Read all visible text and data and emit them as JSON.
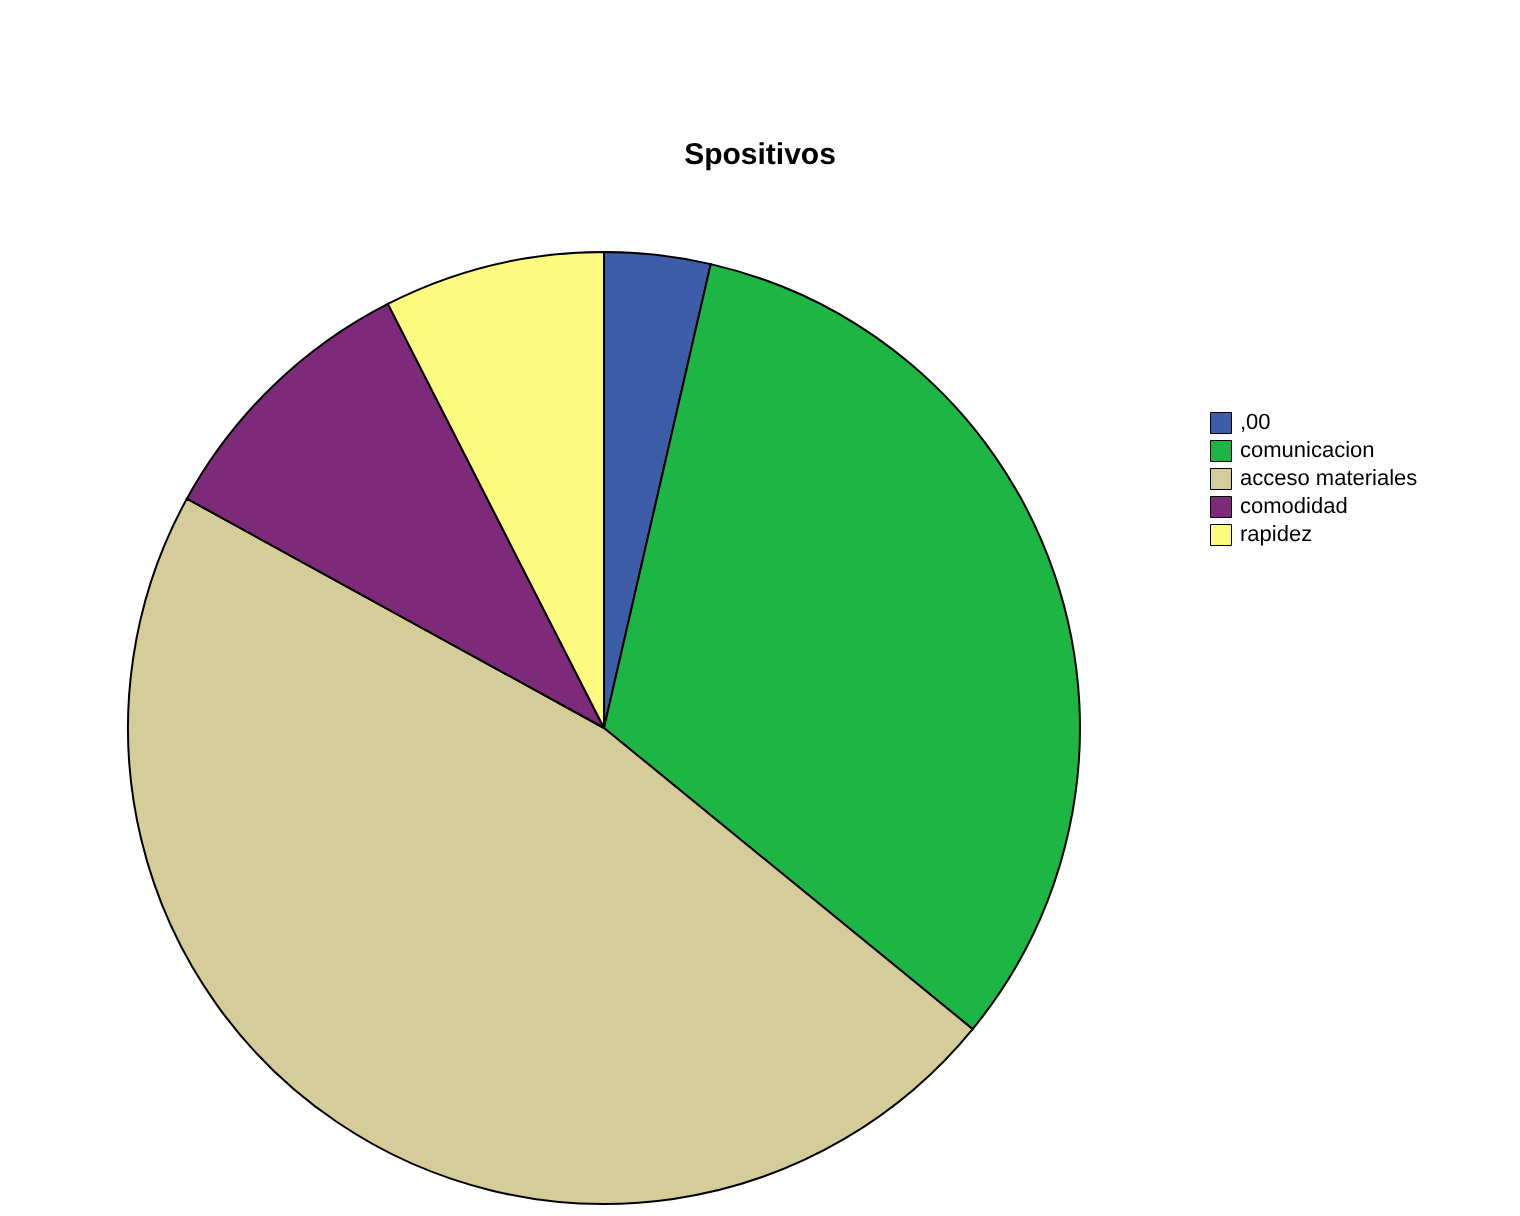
{
  "chart_data": {
    "type": "pie",
    "title": "Spositivos",
    "categories": [
      ",00",
      "comunicacion",
      "acceso materiales",
      "comodidad",
      "rapidez"
    ],
    "values": [
      3.6,
      32.3,
      47.1,
      9.5,
      7.5
    ],
    "colors": [
      "#3e5da8",
      "#1db543",
      "#d4cd99",
      "#7d2a7b",
      "#fcfb7f"
    ],
    "legend": "top right"
  }
}
